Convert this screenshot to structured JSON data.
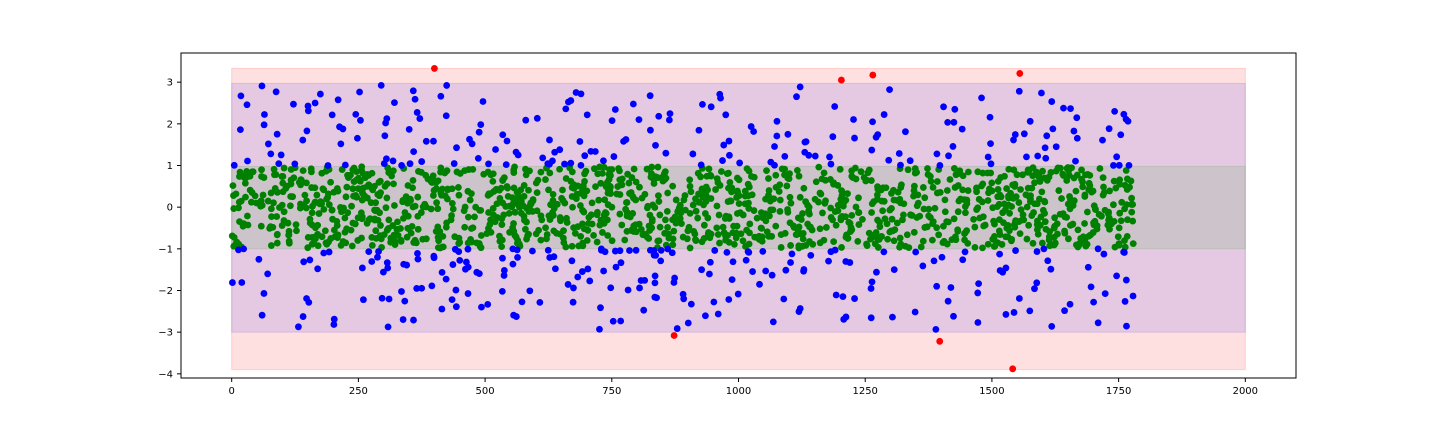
{
  "chart_data": {
    "type": "scatter",
    "title": "",
    "xlabel": "",
    "ylabel": "",
    "xlim": [
      -100,
      2100
    ],
    "ylim": [
      -4.1,
      3.7
    ],
    "xticks": [
      0,
      250,
      500,
      750,
      1000,
      1250,
      1500,
      1750,
      2000
    ],
    "yticks": [
      3,
      2,
      1,
      0,
      -1,
      -2,
      -3,
      -4
    ],
    "xtick_labels": [
      "0",
      "250",
      "500",
      "750",
      "1000",
      "1250",
      "1500",
      "1750",
      "2000"
    ],
    "ytick_labels": [
      "3",
      "2",
      "1",
      "0",
      "−1",
      "−2",
      "−3",
      "−4"
    ],
    "grid": false,
    "bands": [
      {
        "y0": -3.9,
        "y1": 3.33,
        "x0": 0,
        "x1": 2000,
        "color": "#ff0000",
        "alpha": 0.12
      },
      {
        "y0": -3.0,
        "y1": 2.97,
        "x0": 0,
        "x1": 2000,
        "color": "#0000ff",
        "alpha": 0.1
      },
      {
        "y0": -1.0,
        "y1": 0.98,
        "x0": 0,
        "x1": 2000,
        "color": "#00a000",
        "alpha": 0.1
      }
    ],
    "series": [
      {
        "color": "#008000",
        "generated": true,
        "count": 1380,
        "x_range": [
          0,
          1780
        ],
        "y_range": [
          -0.98,
          0.97
        ],
        "seed": 11
      },
      {
        "color": "#0000ff",
        "generated": true,
        "count": 420,
        "x_range": [
          0,
          1780
        ],
        "y_abs_range": [
          1.0,
          2.95
        ],
        "seed": 29
      },
      {
        "color": "#ff0000",
        "generated": false,
        "x": [
          400,
          873,
          1203,
          1265,
          1397,
          1541,
          1555
        ],
        "y": [
          3.33,
          -3.08,
          3.05,
          3.17,
          -3.22,
          -3.88,
          3.21
        ]
      }
    ]
  }
}
